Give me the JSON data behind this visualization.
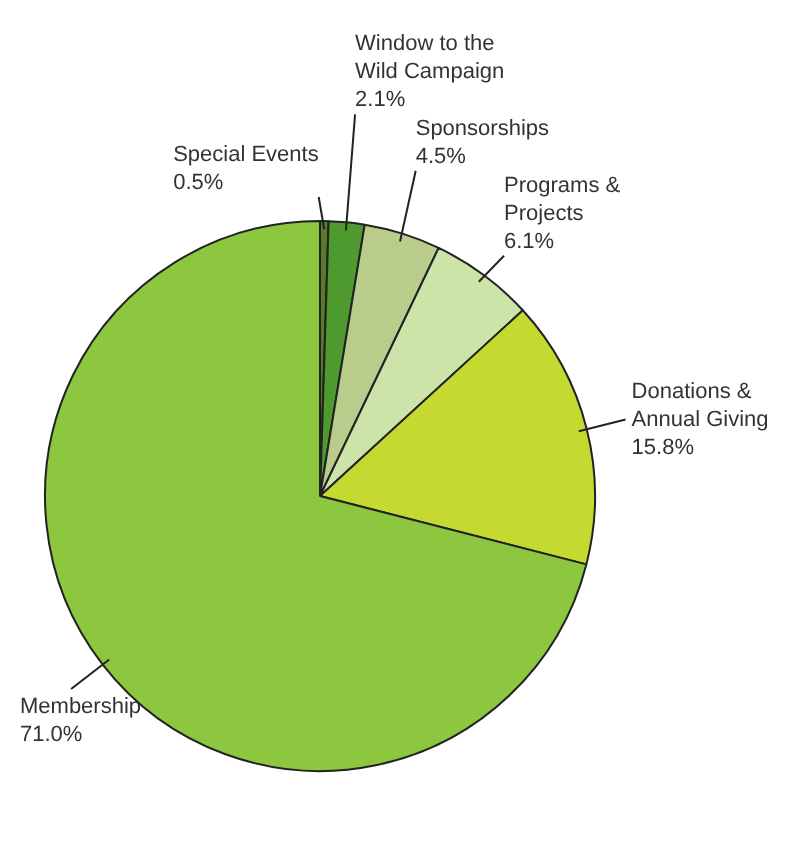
{
  "chart_data": {
    "type": "pie",
    "categories": [
      "Special Events",
      "Window to the Wild Campaign",
      "Sponsorships",
      "Programs & Projects",
      "Donations & Annual Giving",
      "Membership"
    ],
    "values": [
      0.5,
      2.1,
      4.5,
      6.1,
      15.8,
      71.0
    ],
    "colors": [
      "#5a7a2a",
      "#4e9a2e",
      "#b9cc8c",
      "#cde4a9",
      "#c5da30",
      "#8dc63f"
    ],
    "value_labels": [
      "0.5%",
      "2.1%",
      "4.5%",
      "6.1%",
      "15.8%",
      "71.0%"
    ],
    "legend": false
  }
}
